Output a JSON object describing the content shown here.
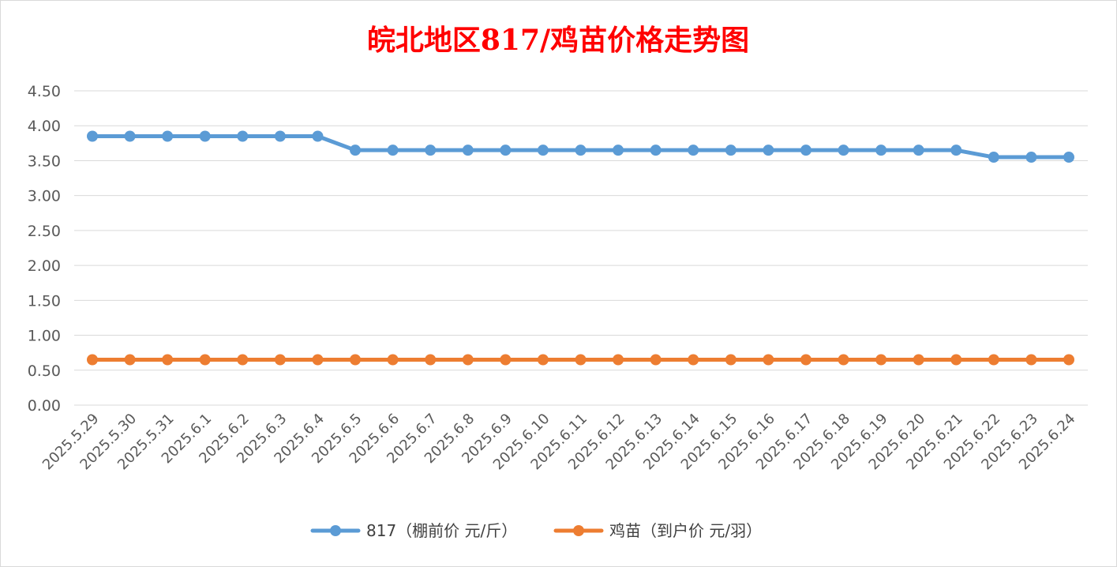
{
  "chart_data": {
    "type": "line",
    "title": "皖北地区817/鸡苗价格走势图",
    "xlabel": "",
    "ylabel": "",
    "ylim": [
      0,
      4.5
    ],
    "y_ticks": [
      "0.00",
      "0.50",
      "1.00",
      "1.50",
      "2.00",
      "2.50",
      "3.00",
      "3.50",
      "4.00",
      "4.50"
    ],
    "grid": true,
    "legend_position": "bottom",
    "categories": [
      "2025.5.29",
      "2025.5.30",
      "2025.5.31",
      "2025.6.1",
      "2025.6.2",
      "2025.6.3",
      "2025.6.4",
      "2025.6.5",
      "2025.6.6",
      "2025.6.7",
      "2025.6.8",
      "2025.6.9",
      "2025.6.10",
      "2025.6.11",
      "2025.6.12",
      "2025.6.13",
      "2025.6.14",
      "2025.6.15",
      "2025.6.16",
      "2025.6.17",
      "2025.6.18",
      "2025.6.19",
      "2025.6.20",
      "2025.6.21",
      "2025.6.22",
      "2025.6.23",
      "2025.6.24"
    ],
    "series": [
      {
        "name": "817（棚前价 元/斤）",
        "color": "#5b9bd5",
        "values": [
          3.85,
          3.85,
          3.85,
          3.85,
          3.85,
          3.85,
          3.85,
          3.65,
          3.65,
          3.65,
          3.65,
          3.65,
          3.65,
          3.65,
          3.65,
          3.65,
          3.65,
          3.65,
          3.65,
          3.65,
          3.65,
          3.65,
          3.65,
          3.65,
          3.55,
          3.55,
          3.55
        ]
      },
      {
        "name": "鸡苗（到户价 元/羽）",
        "color": "#ed7d31",
        "values": [
          0.65,
          0.65,
          0.65,
          0.65,
          0.65,
          0.65,
          0.65,
          0.65,
          0.65,
          0.65,
          0.65,
          0.65,
          0.65,
          0.65,
          0.65,
          0.65,
          0.65,
          0.65,
          0.65,
          0.65,
          0.65,
          0.65,
          0.65,
          0.65,
          0.65,
          0.65,
          0.65
        ]
      }
    ]
  }
}
